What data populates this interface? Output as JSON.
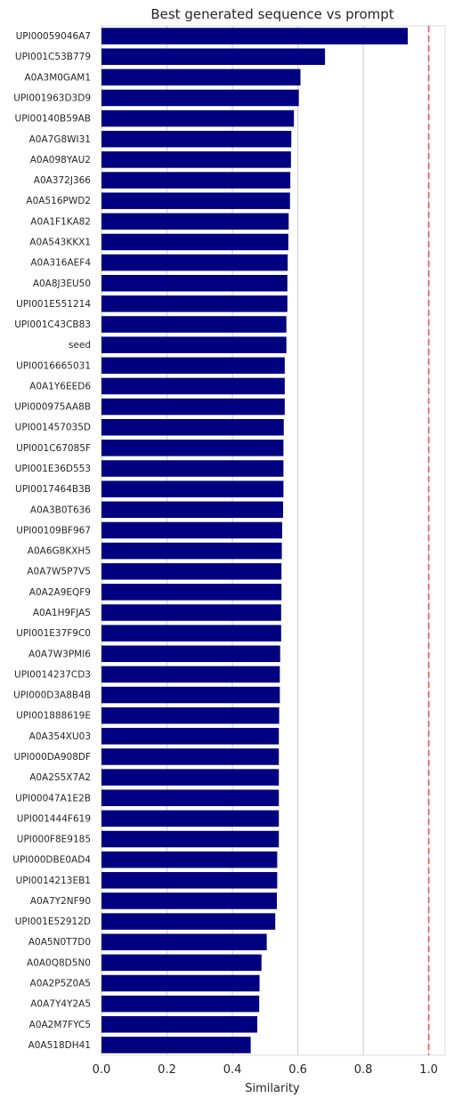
{
  "chart_data": {
    "type": "bar",
    "orientation": "horizontal",
    "title": "Best generated sequence vs prompt",
    "xlabel": "Similarity",
    "ylabel": "",
    "xlim": [
      0,
      1.05
    ],
    "xticks": [
      "0.0",
      "0.2",
      "0.4",
      "0.6",
      "0.8",
      "1.0"
    ],
    "grid": "vertical",
    "bar_color": "#000080",
    "reference_line": {
      "x": 1.0,
      "style": "dashed",
      "color": "#e06666"
    },
    "categories": [
      "UPI00059046A7",
      "UPI001C53B779",
      "A0A3M0GAM1",
      "UPI001963D3D9",
      "UPI00140B59AB",
      "A0A7G8WI31",
      "A0A098YAU2",
      "A0A372J366",
      "A0A516PWD2",
      "A0A1F1KA82",
      "A0A543KKX1",
      "A0A316AEF4",
      "A0A8J3EU50",
      "UPI001E551214",
      "UPI001C43CB83",
      "seed",
      "UPI0016665031",
      "A0A1Y6EED6",
      "UPI000975AA8B",
      "UPI001457035D",
      "UPI001C67085F",
      "UPI001E36D553",
      "UPI0017464B3B",
      "A0A3B0T636",
      "UPI00109BF967",
      "A0A6G8KXH5",
      "A0A7W5P7V5",
      "A0A2A9EQF9",
      "A0A1H9FJA5",
      "UPI001E37F9C0",
      "A0A7W3PMI6",
      "UPI0014237CD3",
      "UPI000D3A8B4B",
      "UPI001888619E",
      "A0A354XU03",
      "UPI000DA908DF",
      "A0A2S5X7A2",
      "UPI00047A1E2B",
      "UPI001444F619",
      "UPI000F8E9185",
      "UPI000DBE0AD4",
      "UPI0014213EB1",
      "A0A7Y2NF90",
      "UPI001E52912D",
      "A0A5N0T7D0",
      "A0A0Q8D5N0",
      "A0A2P5Z0A5",
      "A0A7Y4Y2A5",
      "A0A2M7FYC5",
      "A0A518DH41"
    ],
    "values": [
      0.936,
      0.683,
      0.608,
      0.603,
      0.588,
      0.58,
      0.579,
      0.577,
      0.576,
      0.572,
      0.571,
      0.569,
      0.568,
      0.568,
      0.565,
      0.565,
      0.56,
      0.56,
      0.56,
      0.557,
      0.556,
      0.556,
      0.556,
      0.555,
      0.552,
      0.551,
      0.55,
      0.55,
      0.549,
      0.549,
      0.546,
      0.545,
      0.545,
      0.543,
      0.542,
      0.542,
      0.542,
      0.542,
      0.542,
      0.542,
      0.537,
      0.537,
      0.536,
      0.531,
      0.505,
      0.489,
      0.483,
      0.482,
      0.476,
      0.456
    ]
  }
}
